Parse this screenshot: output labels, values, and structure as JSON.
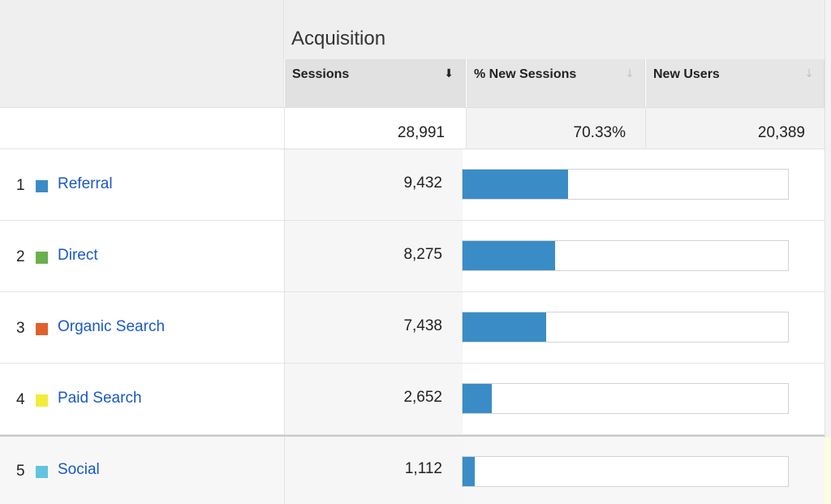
{
  "header": {
    "group_title": "Acquisition"
  },
  "columns": [
    {
      "label": "Sessions",
      "sort_icon": "arrow-down-icon",
      "active": true
    },
    {
      "label": "% New Sessions",
      "sort_icon": "arrow-down-icon",
      "active": false
    },
    {
      "label": "New Users",
      "sort_icon": "arrow-down-icon",
      "active": false
    }
  ],
  "totals": {
    "sessions": "28,991",
    "pct_new_sessions": "70.33%",
    "new_users": "20,389"
  },
  "rows": [
    {
      "rank": "1",
      "channel": "Referral",
      "swatch_color": "#3b8bc8",
      "sessions": "9,432",
      "sessions_share": 0.325
    },
    {
      "rank": "2",
      "channel": "Direct",
      "swatch_color": "#6ab04c",
      "sessions": "8,275",
      "sessions_share": 0.285
    },
    {
      "rank": "3",
      "channel": "Organic Search",
      "swatch_color": "#e0602b",
      "sessions": "7,438",
      "sessions_share": 0.257
    },
    {
      "rank": "4",
      "channel": "Paid Search",
      "swatch_color": "#f2ec3a",
      "sessions": "2,652",
      "sessions_share": 0.091
    },
    {
      "rank": "5",
      "channel": "Social",
      "swatch_color": "#62c4e0",
      "sessions": "1,112",
      "sessions_share": 0.038
    }
  ],
  "colors": {
    "bar_fill": "#3a8cc7",
    "link": "#1a58c8"
  }
}
